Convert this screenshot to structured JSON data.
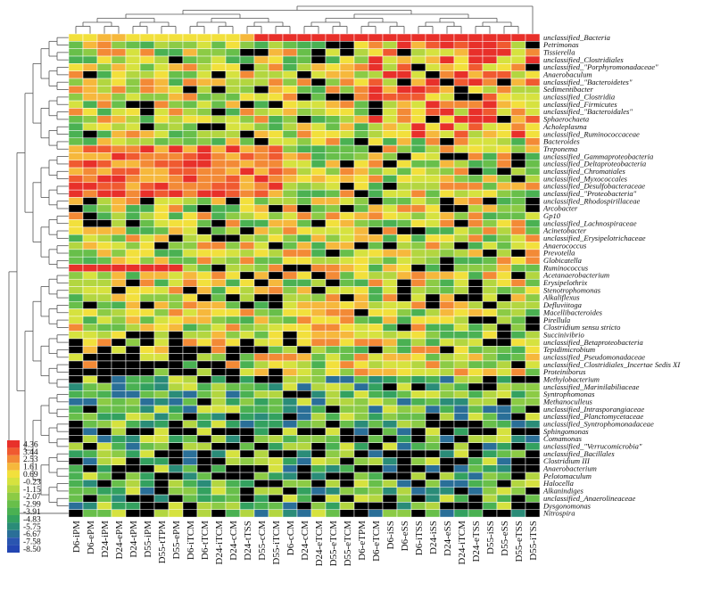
{
  "chart_data": {
    "type": "heatmap",
    "title": "",
    "columns": [
      "D6-iPM",
      "D6-ePM",
      "D24-iPM",
      "D24-ePM",
      "D24-tPM",
      "D55-iPM",
      "D55-tTPM",
      "D55-ePM",
      "D6-iTCM",
      "D6-tTCM",
      "D24-iTCM",
      "D24-cCM",
      "D24-tTSS",
      "D55-cCM",
      "D55-iTCM",
      "D6-cCM",
      "D24-cCM",
      "D24-eTCM",
      "D55-eTCM",
      "D55-eTCM",
      "D6-eTPM",
      "D6-eTCM",
      "D6-iSS",
      "D6-eSS",
      "D6-iTSS",
      "D24-iSS",
      "D24-eSS",
      "D24-iTCM",
      "D24-eTSS",
      "D55-iSS",
      "D55-eSS",
      "D55-eTSS",
      "D55-iTSS"
    ],
    "rows": [
      "unclassified_Bacteria",
      "Petrimonas",
      "Tissierella",
      "unclassified_Clostridiales",
      "unclassified_\"Porphyromonadaceae\"",
      "Anaerobaculum",
      "unclassified_\"Bacteroidetes\"",
      "Sedimentibacter",
      "unclassified_Clostridia",
      "unclassified_Firmicutes",
      "unclassified_\"Bacteroidales\"",
      "Sphaerochaeta",
      "Acholeplasma",
      "unclassified_Ruminococcaceae",
      "Bacteroides",
      "Treponema",
      "unclassified_Gammaproteobacteria",
      "unclassified_Deltaproteobacteria",
      "unclassified_Chromatiales",
      "unclassified_Myxococcales",
      "unclassified_Desulfobacteraceae",
      "unclassified_\"Proteobacteria\"",
      "unclassified_Rhodospirillaceae",
      "Arcobacter",
      "Gp10",
      "unclassified_Lachnospiraceae",
      "Acinetobacter",
      "unclassified_Erysipelotrichaceae",
      "Anaerococcus",
      "Prevotella",
      "Globicatella",
      "Ruminococcus",
      "Acetanaerobacterium",
      "Erysipelothrix",
      "Stenotrophomonas",
      "Alkaliflexus",
      "Defluviitoga",
      "Macellibacteroides",
      "Pirellula",
      "Clostridium sensu stricto",
      "Succinivibrio",
      "unclassified_Betaproteobacteria",
      "Tepidimicrobium",
      "unclassified_Pseudomonadaceae",
      "unclassified_Clostridiales_Incertae Sedis XI",
      "Proteiniborus",
      "Methylobacterium",
      "unclassified_Marinilabiliaceae",
      "Syntrophomonas",
      "Methanoculleus",
      "unclassified_Intrasporangiaceae",
      "unclassified_Planctomycetaceae",
      "unclassified_Syntrophomonadaceae",
      "Sphingomonas",
      "Comamonas",
      "unclassified_\"Verrucomicrobia\"",
      "unclassified_Bacillales",
      "Clostridium III",
      "Anaerobacterium",
      "Pelotomaculum",
      "Halocella",
      "Alkanindiges",
      "unclassified_Anaerolineaceae",
      "Dysgonomonas",
      "Nitrospira"
    ],
    "color_scale": {
      "ticks": [
        "4.36",
        "3.44",
        "2.53",
        "1.61",
        "0.69",
        "-0.23",
        "-1.15",
        "-2.07",
        "-2.99",
        "-3.91",
        "-4.83",
        "-5.75",
        "-6.67",
        "-7.58",
        "-8.50"
      ],
      "colors": [
        "#e8302a",
        "#f05a30",
        "#f38a36",
        "#f6b83c",
        "#f2e03c",
        "#d6e23f",
        "#b3d640",
        "#8ccb45",
        "#68bf4a",
        "#4ab152",
        "#33a15f",
        "#2a8c78",
        "#2a6f98",
        "#2a55b0",
        "#2346b2"
      ],
      "min": -8.5,
      "max": 4.36,
      "missing_color": "#000000"
    },
    "values_estimated": "generated approximation of the depicted log-abundance pattern; black cells mark absent taxa",
    "row_dendrogram": true,
    "column_dendrogram": true
  }
}
